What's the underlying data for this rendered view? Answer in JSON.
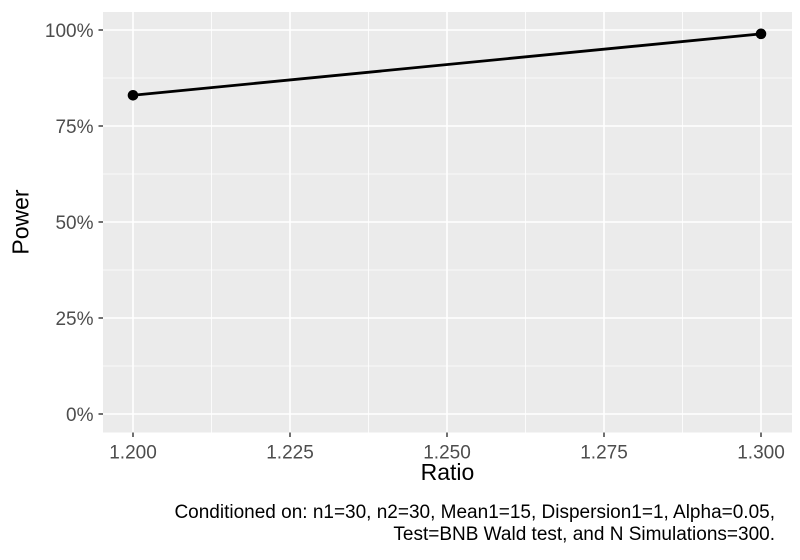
{
  "figure": {
    "caption_line1": "Conditioned on: n1=30, n2=30, Mean1=15, Dispersion1=1, Alpha=0.05,",
    "caption_line2": "Test=BNB Wald test, and N Simulations=300."
  },
  "chart_data": {
    "type": "line",
    "title": "",
    "xlabel": "Ratio",
    "ylabel": "Power",
    "x": [
      1.2,
      1.3
    ],
    "series": [
      {
        "name": "Power",
        "values": [
          0.83,
          0.99
        ]
      }
    ],
    "x_ticks": [
      {
        "value": 1.2,
        "label": "1.200"
      },
      {
        "value": 1.225,
        "label": "1.225"
      },
      {
        "value": 1.25,
        "label": "1.250"
      },
      {
        "value": 1.275,
        "label": "1.275"
      },
      {
        "value": 1.3,
        "label": "1.300"
      }
    ],
    "y_ticks": [
      {
        "value": 0,
        "label": "0%"
      },
      {
        "value": 0.25,
        "label": "25%"
      },
      {
        "value": 0.5,
        "label": "50%"
      },
      {
        "value": 0.75,
        "label": "75%"
      },
      {
        "value": 1,
        "label": "100%"
      }
    ],
    "x_range": [
      1.2,
      1.3
    ],
    "y_range": [
      0,
      1
    ],
    "grid": "major and minor, white on grey panel",
    "legend": "none",
    "colors": {
      "panel_bg": "#EBEBEB",
      "grid": "#FFFFFF",
      "axis_text": "#4D4D4D",
      "tick_mark": "#333333",
      "line": "#000000",
      "point": "#000000"
    }
  }
}
